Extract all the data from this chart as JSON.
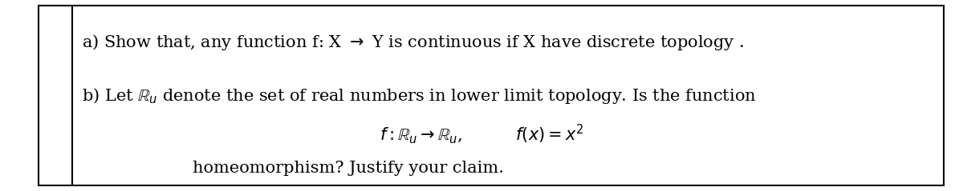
{
  "background_color": "#ffffff",
  "border_color": "#000000",
  "font_size": 15,
  "fig_width": 12.0,
  "fig_height": 2.39
}
